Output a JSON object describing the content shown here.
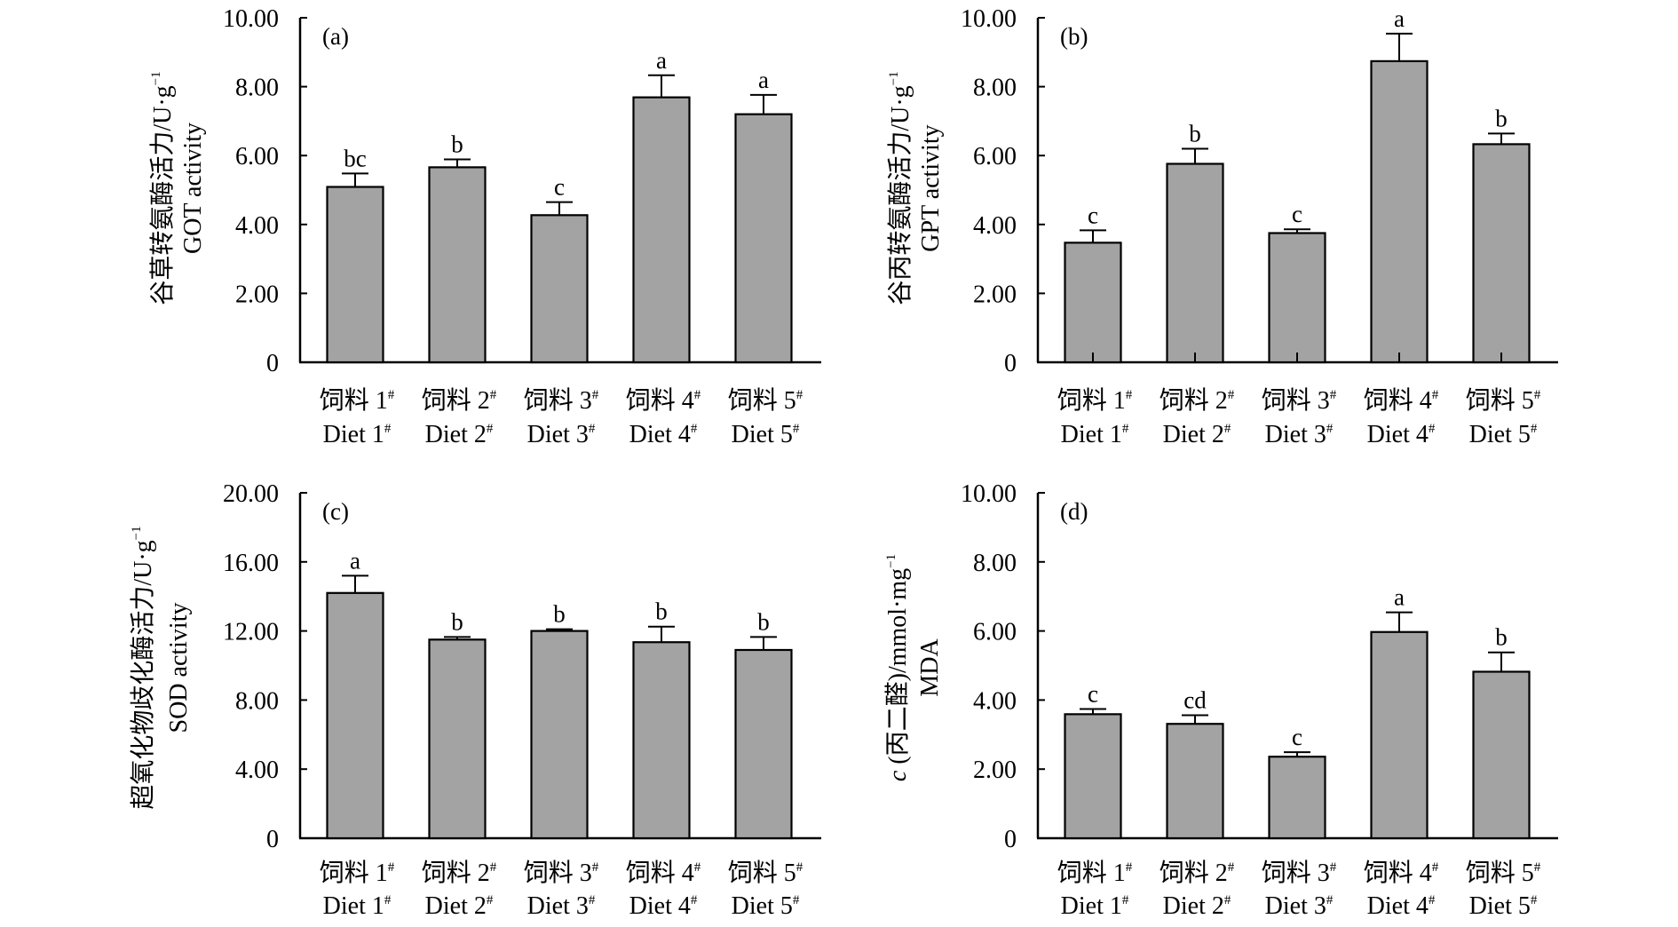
{
  "chart_data": [
    {
      "type": "bar",
      "panel_label": "(a)",
      "ylabel": [
        "谷草转氨酶活力/U·g",
        "GOT activity"
      ],
      "ylabel_superscript": "−1",
      "categories": [
        [
          "饲料 1",
          "Diet 1"
        ],
        [
          "饲料 2",
          "Diet 2"
        ],
        [
          "饲料 3",
          "Diet 3"
        ],
        [
          "饲料 4",
          "Diet 4"
        ],
        [
          "饲料 5",
          "Diet 5"
        ]
      ],
      "category_superscript": "#",
      "values": [
        5.09,
        5.66,
        4.27,
        7.69,
        7.2
      ],
      "errors": [
        0.39,
        0.23,
        0.38,
        0.64,
        0.56
      ],
      "significance": [
        "bc",
        "b",
        "c",
        "a",
        "a"
      ],
      "ylim": [
        0,
        10
      ],
      "yticks": [
        "0",
        "2.00",
        "4.00",
        "6.00",
        "8.00",
        "10.00"
      ],
      "ytick_values": [
        0,
        2,
        4,
        6,
        8,
        10
      ],
      "category_ticks": false,
      "grid": false,
      "bar_color": "#a3a3a3"
    },
    {
      "type": "bar",
      "panel_label": "(b)",
      "ylabel": [
        "谷丙转氨酶活力/U·g",
        "GPT activity"
      ],
      "ylabel_superscript": "−1",
      "categories": [
        [
          "饲料 1",
          "Diet 1"
        ],
        [
          "饲料 2",
          "Diet 2"
        ],
        [
          "饲料 3",
          "Diet 3"
        ],
        [
          "饲料 4",
          "Diet 4"
        ],
        [
          "饲料 5",
          "Diet 5"
        ]
      ],
      "category_superscript": "#",
      "values": [
        3.47,
        5.76,
        3.75,
        8.74,
        6.33
      ],
      "errors": [
        0.36,
        0.44,
        0.11,
        0.8,
        0.31
      ],
      "significance": [
        "c",
        "b",
        "c",
        "a",
        "b"
      ],
      "ylim": [
        0,
        10
      ],
      "yticks": [
        "0",
        "2.00",
        "4.00",
        "6.00",
        "8.00",
        "10.00"
      ],
      "ytick_values": [
        0,
        2,
        4,
        6,
        8,
        10
      ],
      "category_ticks": true,
      "grid": false,
      "bar_color": "#a3a3a3"
    },
    {
      "type": "bar",
      "panel_label": "(c)",
      "ylabel": [
        "超氧化物歧化酶活力/U·g",
        "SOD activity"
      ],
      "ylabel_superscript": "−1",
      "categories": [
        [
          "饲料 1",
          "Diet 1"
        ],
        [
          "饲料 2",
          "Diet 2"
        ],
        [
          "饲料 3",
          "Diet 3"
        ],
        [
          "饲料 4",
          "Diet 4"
        ],
        [
          "饲料 5",
          "Diet 5"
        ]
      ],
      "category_superscript": "#",
      "values": [
        14.2,
        11.5,
        12.0,
        11.35,
        10.9
      ],
      "errors": [
        1.0,
        0.15,
        0.1,
        0.9,
        0.75
      ],
      "significance": [
        "a",
        "b",
        "b",
        "b",
        "b"
      ],
      "ylim": [
        0,
        20
      ],
      "yticks": [
        "0",
        "4.00",
        "8.00",
        "12.00",
        "16.00",
        "20.00"
      ],
      "ytick_values": [
        0,
        4,
        8,
        12,
        16,
        20
      ],
      "category_ticks": false,
      "grid": false,
      "bar_color": "#a3a3a3"
    },
    {
      "type": "bar",
      "panel_label": "(d)",
      "ylabel": [
        "c (丙二醛)/mmol·mg",
        "MDA"
      ],
      "ylabel_superscript": "−1",
      "categories": [
        [
          "饲料 1",
          "Diet 1"
        ],
        [
          "饲料 2",
          "Diet 2"
        ],
        [
          "饲料 3",
          "Diet 3"
        ],
        [
          "饲料 4",
          "Diet 4"
        ],
        [
          "饲料 5",
          "Diet 5"
        ]
      ],
      "category_superscript": "#",
      "values": [
        3.59,
        3.31,
        2.36,
        5.97,
        4.82
      ],
      "errors": [
        0.15,
        0.25,
        0.13,
        0.57,
        0.56
      ],
      "significance": [
        "c",
        "cd",
        "c",
        "a",
        "b"
      ],
      "ylim": [
        0,
        10
      ],
      "yticks": [
        "0",
        "2.00",
        "4.00",
        "6.00",
        "8.00",
        "10.00"
      ],
      "ytick_values": [
        0,
        2,
        4,
        6,
        8,
        10
      ],
      "category_ticks": false,
      "grid": false,
      "bar_color": "#a3a3a3"
    }
  ]
}
